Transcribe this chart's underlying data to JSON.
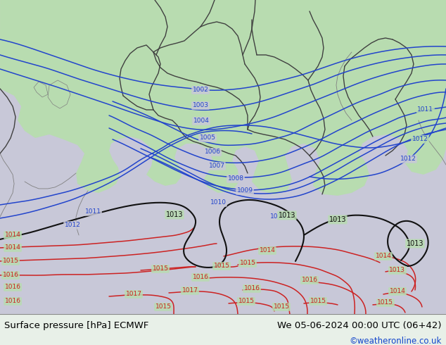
{
  "title_left": "Surface pressure [hPa] ECMWF",
  "title_right": "We 05-06-2024 00:00 UTC (06+42)",
  "credit": "©weatheronline.co.uk",
  "sea_color": "#c8c8d8",
  "land_color": "#b8dcb0",
  "border_color": "#404040",
  "coast_color": "#808080",
  "blue_color": "#2244cc",
  "red_color": "#cc2222",
  "black_color": "#111111",
  "footer_bg": "#e8f0e8",
  "fig_width": 6.34,
  "fig_height": 4.9,
  "dpi": 100
}
